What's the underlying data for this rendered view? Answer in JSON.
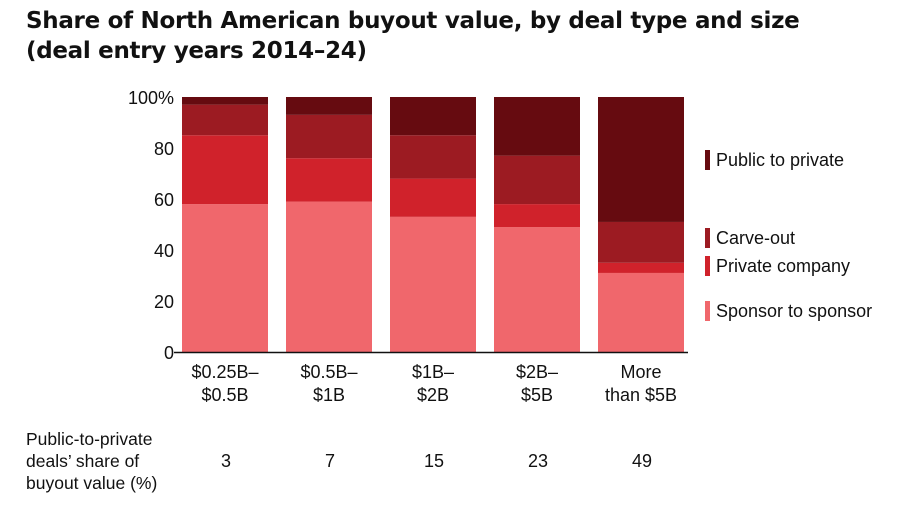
{
  "title": {
    "line1": "Share of North American buyout value, by deal type and size",
    "line2": "(deal entry years 2014–24)"
  },
  "chart_data": {
    "type": "bar",
    "stacked": true,
    "title": "Share of North American buyout value, by deal type and size (deal entry years 2014–24)",
    "categories": [
      [
        "$0.25B–",
        "$0.5B"
      ],
      [
        "$0.5B–",
        "$1B"
      ],
      [
        "$1B–",
        "$2B"
      ],
      [
        "$2B–",
        "$5B"
      ],
      [
        "More",
        "than $5B"
      ]
    ],
    "yticks": [
      "0",
      "20",
      "40",
      "60",
      "80",
      "100%"
    ],
    "ylim": [
      0,
      100
    ],
    "series": [
      {
        "name": "Sponsor to sponsor",
        "color": "#f0676c",
        "values": [
          58,
          59,
          53,
          49,
          31
        ]
      },
      {
        "name": "Private company",
        "color": "#d0222b",
        "values": [
          27,
          17,
          15,
          9,
          4
        ]
      },
      {
        "name": "Carve-out",
        "color": "#9c1b22",
        "values": [
          12,
          17,
          17,
          19,
          16
        ]
      },
      {
        "name": "Public to private",
        "color": "#660b10",
        "values": [
          3,
          7,
          15,
          23,
          49
        ]
      }
    ],
    "legend": {
      "placement": "right",
      "entries": [
        "Public to private",
        "Carve-out",
        "Private company",
        "Sponsor to sponsor"
      ]
    }
  },
  "footnote": {
    "label_lines": [
      "Public-to-private",
      "deals’ share of",
      "buyout value (%)"
    ],
    "values": [
      "3",
      "7",
      "15",
      "23",
      "49"
    ]
  }
}
